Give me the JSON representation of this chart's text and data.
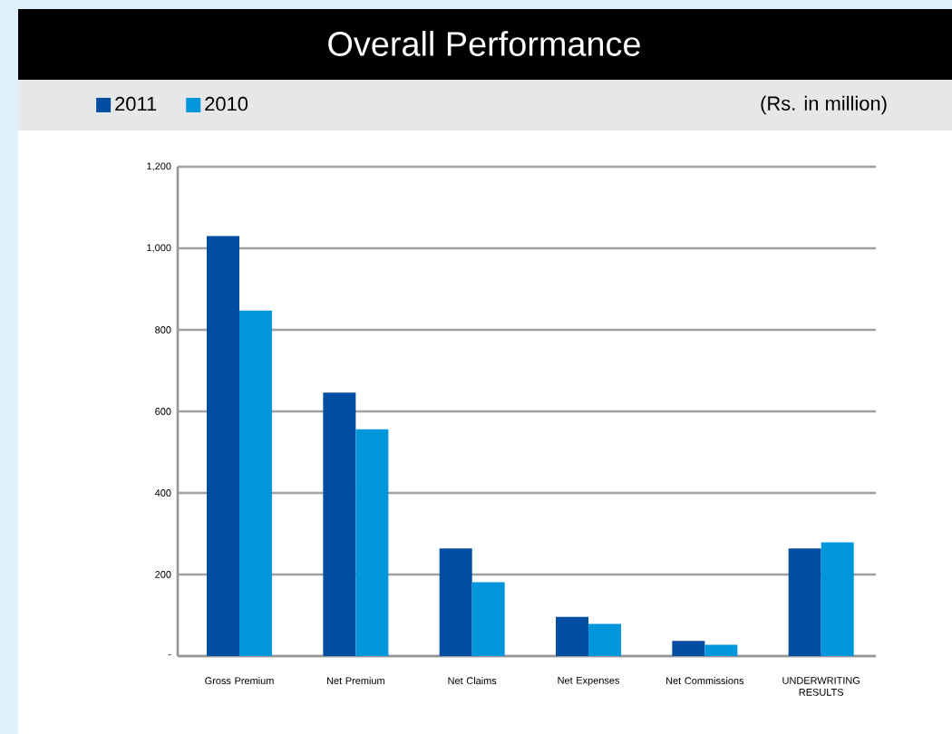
{
  "chart_data": {
    "type": "bar",
    "title": "Overall Performance",
    "annotations": [
      "(Rs. in million)"
    ],
    "categories": [
      "Gross Premium",
      "Net Premium",
      "Net Claims",
      "Net Expenses",
      "Net Commissions",
      "UNDERWRITING RESULTS"
    ],
    "series": [
      {
        "name": "2011",
        "color": "#034ea2",
        "values": [
          1030,
          646,
          264,
          96,
          37,
          264
        ]
      },
      {
        "name": "2010",
        "color": "#0096db",
        "values": [
          847,
          556,
          181,
          79,
          28,
          279
        ]
      }
    ],
    "ylim": [
      0,
      1200
    ],
    "yticks": [
      {
        "value": 0,
        "label": "-"
      },
      200,
      400,
      600,
      800,
      {
        "value": 1000,
        "label": "1,000"
      },
      {
        "value": 1200,
        "label": "1,200"
      }
    ],
    "grid": "y",
    "legend": "top left"
  }
}
